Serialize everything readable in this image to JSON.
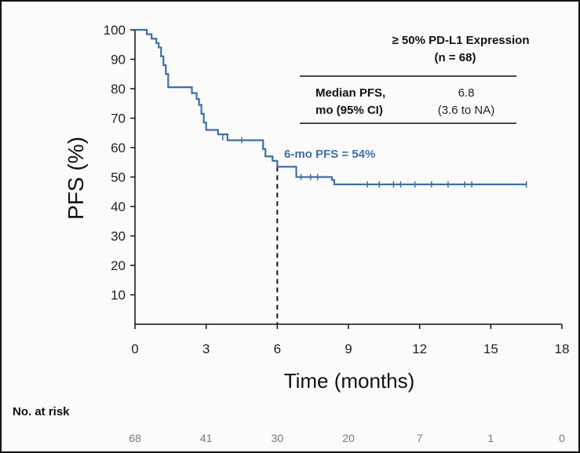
{
  "chart_data": {
    "type": "line",
    "ylabel": "PFS (%)",
    "xlabel": "Time (months)",
    "xlim": [
      0,
      18
    ],
    "ylim": [
      0,
      100
    ],
    "x_ticks": [
      0,
      3,
      6,
      9,
      12,
      15,
      18
    ],
    "y_ticks": [
      10,
      20,
      30,
      40,
      50,
      60,
      70,
      80,
      90,
      100
    ],
    "series_color": "#3e6fa8",
    "km_steps": [
      [
        0,
        100
      ],
      [
        0.5,
        98.5
      ],
      [
        0.7,
        97
      ],
      [
        0.9,
        95.5
      ],
      [
        1.0,
        94
      ],
      [
        1.1,
        91
      ],
      [
        1.2,
        88
      ],
      [
        1.3,
        85
      ],
      [
        1.4,
        80.5
      ],
      [
        2.4,
        78.5
      ],
      [
        2.6,
        76.5
      ],
      [
        2.7,
        74.5
      ],
      [
        2.8,
        71.5
      ],
      [
        2.9,
        68.5
      ],
      [
        3.0,
        66
      ],
      [
        3.5,
        64.5
      ],
      [
        3.9,
        62.5
      ],
      [
        5.4,
        59.5
      ],
      [
        5.5,
        57
      ],
      [
        5.8,
        55.5
      ],
      [
        6.0,
        53.5
      ],
      [
        6.8,
        50
      ],
      [
        8.3,
        49
      ],
      [
        8.4,
        47.5
      ],
      [
        16.5,
        47.5
      ]
    ],
    "censor_marks": [
      [
        3.7,
        63.5
      ],
      [
        4.5,
        62.5
      ],
      [
        7.0,
        50
      ],
      [
        7.4,
        50
      ],
      [
        7.7,
        50
      ],
      [
        9.8,
        47.5
      ],
      [
        10.3,
        47.5
      ],
      [
        10.9,
        47.5
      ],
      [
        11.2,
        47.5
      ],
      [
        11.8,
        47.5
      ],
      [
        12.5,
        47.5
      ],
      [
        13.2,
        47.5
      ],
      [
        13.9,
        47.5
      ],
      [
        14.2,
        47.5
      ],
      [
        16.5,
        47.5
      ]
    ],
    "reference_line": {
      "x": 6,
      "y": 53.5,
      "label": "6-mo PFS = 54%"
    },
    "inset_table": {
      "header_line1": "≥ 50% PD-L1 Expression",
      "header_line2": "(n = 68)",
      "row_label_line1": "Median PFS,",
      "row_label_line2": "mo (95% CI)",
      "value_line1": "6.8",
      "value_line2": "(3.6 to NA)"
    },
    "at_risk": {
      "title": "No. at risk",
      "times": [
        0,
        3,
        6,
        9,
        12,
        15,
        18
      ],
      "counts": [
        "68",
        "41",
        "30",
        "20",
        "7",
        "1",
        "0"
      ]
    }
  }
}
